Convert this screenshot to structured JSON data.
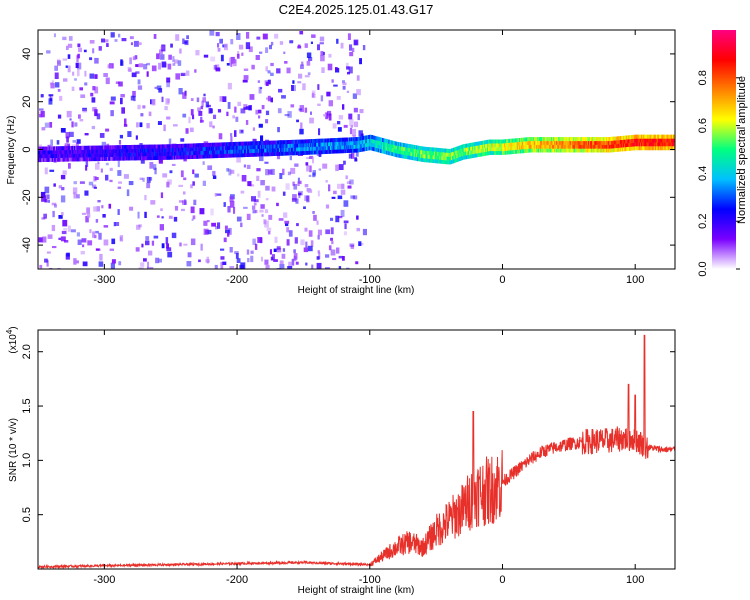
{
  "figure": {
    "title": "C2E4.2025.125.01.43.G17"
  },
  "chart_data": [
    {
      "type": "heatmap",
      "name": "spectrogram",
      "xlabel": "Height of straight line (km)",
      "ylabel": "Frequency (Hz)",
      "xlim": [
        -350,
        130
      ],
      "ylim": [
        -50,
        50
      ],
      "xticks": [
        -300,
        -200,
        -100,
        0,
        100
      ],
      "yticks": [
        -40,
        -20,
        0,
        20,
        40
      ],
      "grid": false,
      "colorbar": {
        "label": "Normalized spectral amplitude",
        "range": [
          0,
          1
        ],
        "ticks": [
          0.0,
          0.2,
          0.4,
          0.6,
          0.8
        ],
        "tick_labels": [
          "0.0",
          "0.2",
          "0.4",
          "0.6",
          "0.8"
        ],
        "colormap": [
          "#ffffff",
          "#7a00ff",
          "#0000ff",
          "#00c0ff",
          "#00ff80",
          "#ffff00",
          "#ff8000",
          "#ff0000",
          "#ff0080"
        ]
      },
      "ridge": {
        "x": [
          -350,
          -250,
          -200,
          -150,
          -110,
          -100,
          -80,
          -60,
          -40,
          -30,
          -10,
          0,
          20,
          40,
          60,
          80,
          100,
          130
        ],
        "y": [
          -2,
          -1,
          0,
          1,
          2,
          3,
          0,
          -2,
          -3,
          -1,
          1,
          1,
          2,
          2,
          2,
          2,
          3,
          3
        ],
        "amplitude": [
          0.2,
          0.25,
          0.3,
          0.35,
          0.4,
          0.45,
          0.55,
          0.6,
          0.6,
          0.6,
          0.65,
          0.7,
          0.75,
          0.8,
          0.85,
          0.9,
          0.95,
          0.95
        ]
      },
      "noise_region_x": [
        -350,
        -105
      ]
    },
    {
      "type": "line",
      "name": "snr",
      "xlabel": "Height of straight line (km)",
      "ylabel": "SNR (10 * v/v)",
      "yscale_label": "(x10",
      "yscale_exponent": "4",
      "xlim": [
        -350,
        130
      ],
      "ylim": [
        0,
        2.2
      ],
      "xticks": [
        -300,
        -200,
        -100,
        0,
        100
      ],
      "yticks": [
        0.5,
        1.0,
        1.5,
        2.0
      ],
      "ytick_labels": [
        "0.5",
        "1.0",
        "1.5",
        "2.0"
      ],
      "grid": false,
      "series": [
        {
          "color": "#e8302a",
          "x": [
            -350,
            -300,
            -250,
            -200,
            -150,
            -100,
            -90,
            -80,
            -70,
            -60,
            -50,
            -40,
            -30,
            -20,
            -10,
            0,
            10,
            20,
            30,
            40,
            50,
            60,
            70,
            80,
            90,
            100,
            105,
            110,
            120,
            130
          ],
          "y": [
            0.02,
            0.03,
            0.04,
            0.05,
            0.06,
            0.04,
            0.12,
            0.2,
            0.25,
            0.2,
            0.35,
            0.45,
            0.55,
            0.7,
            0.72,
            0.8,
            0.9,
            1.0,
            1.08,
            1.12,
            1.15,
            1.17,
            1.18,
            1.18,
            1.2,
            1.2,
            1.15,
            1.12,
            1.1,
            1.1
          ],
          "spikes": [
            {
              "x": -22,
              "y": 1.45
            },
            {
              "x": 107,
              "y": 2.15
            },
            {
              "x": 95,
              "y": 1.7
            },
            {
              "x": 100,
              "y": 1.6
            }
          ]
        }
      ]
    }
  ]
}
